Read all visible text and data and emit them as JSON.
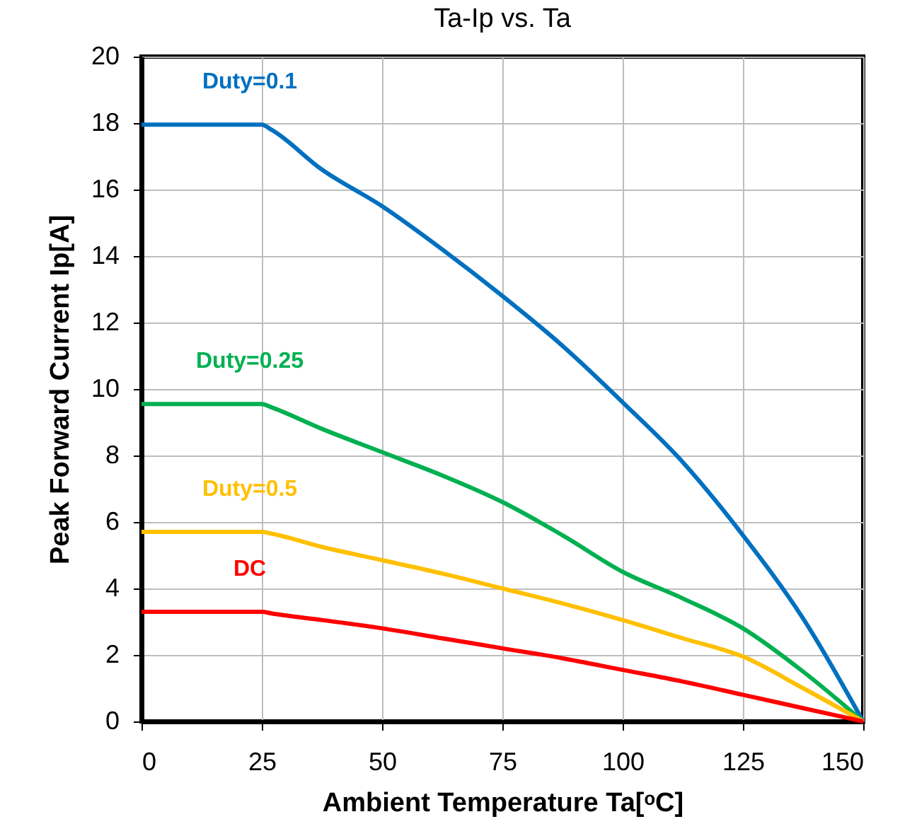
{
  "chart_data": {
    "type": "line",
    "title": "Ta-Ip vs. Ta",
    "xlabel": "Ambient Temperature Ta[ᵒC]",
    "ylabel": "Peak Forward Current Ip[A]",
    "x": [
      0,
      25,
      27,
      37.5,
      50,
      62.5,
      75,
      87.5,
      100,
      112.5,
      125,
      137.5,
      150
    ],
    "series": [
      {
        "name": "Duty=0.1",
        "color": "#0070c0",
        "values": [
          17.95,
          17.95,
          17.8,
          16.6,
          15.5,
          14.2,
          12.8,
          11.3,
          9.6,
          7.8,
          5.6,
          3.1,
          0
        ]
      },
      {
        "name": "Duty=0.25",
        "color": "#00b050",
        "values": [
          9.55,
          9.55,
          9.45,
          8.8,
          8.1,
          7.4,
          6.6,
          5.6,
          4.5,
          3.7,
          2.8,
          1.5,
          0
        ]
      },
      {
        "name": "Duty=0.5",
        "color": "#ffc000",
        "values": [
          5.7,
          5.7,
          5.65,
          5.25,
          4.85,
          4.45,
          4.0,
          3.55,
          3.05,
          2.5,
          1.95,
          1.0,
          0
        ]
      },
      {
        "name": "DC",
        "color": "#ff0000",
        "values": [
          3.3,
          3.3,
          3.25,
          3.05,
          2.8,
          2.5,
          2.2,
          1.9,
          1.55,
          1.2,
          0.8,
          0.4,
          0
        ]
      }
    ],
    "xlim": [
      0,
      150
    ],
    "xticks": [
      0,
      25,
      50,
      75,
      100,
      125,
      150
    ],
    "ylim": [
      0,
      20
    ],
    "yticks": [
      0,
      2,
      4,
      6,
      8,
      10,
      12,
      14,
      16,
      18,
      20
    ],
    "grid": true,
    "legend": false,
    "marker": "none",
    "line_style": "solid"
  }
}
